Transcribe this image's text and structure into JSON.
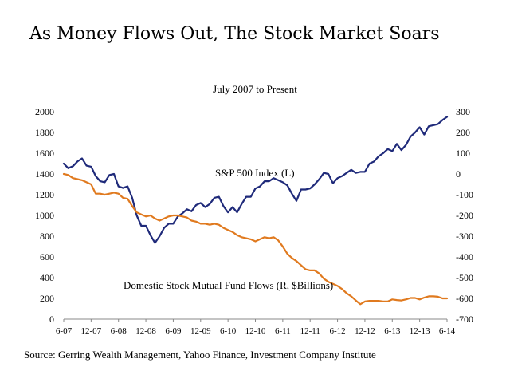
{
  "page": {
    "title": "As Money Flows Out, The Stock Market Soars",
    "subtitle": "July 2007 to Present",
    "source": "Source: Gerring Wealth Management, Yahoo Finance, Investment Company Institute"
  },
  "chart_data": {
    "type": "line",
    "title": "As Money Flows Out, The Stock Market Soars",
    "subtitle": "July 2007 to Present",
    "x_tick_labels": [
      "6-07",
      "12-07",
      "6-08",
      "12-08",
      "6-09",
      "12-09",
      "6-10",
      "12-10",
      "6-11",
      "12-11",
      "6-12",
      "12-12",
      "6-13",
      "12-13",
      "6-14"
    ],
    "y_left": {
      "ticks": [
        "0",
        "200",
        "400",
        "600",
        "800",
        "1000",
        "1200",
        "1400",
        "1600",
        "1800",
        "2000"
      ],
      "range": [
        0,
        2000
      ]
    },
    "y_right": {
      "ticks": [
        "-700",
        "-600",
        "-500",
        "-400",
        "-300",
        "-200",
        "-100",
        "0",
        "100",
        "200",
        "300"
      ],
      "range": [
        -700,
        300
      ]
    },
    "grid": false,
    "series": [
      {
        "name": "S&P 500 Index (L)",
        "axis": "left",
        "color": "#1f2a7a",
        "values": [
          1500,
          1455,
          1475,
          1520,
          1550,
          1480,
          1470,
          1380,
          1330,
          1320,
          1390,
          1400,
          1280,
          1265,
          1280,
          1170,
          1000,
          900,
          900,
          810,
          735,
          800,
          880,
          920,
          920,
          990,
          1020,
          1060,
          1040,
          1100,
          1120,
          1080,
          1110,
          1170,
          1180,
          1090,
          1030,
          1080,
          1030,
          1110,
          1180,
          1180,
          1260,
          1280,
          1330,
          1330,
          1360,
          1340,
          1320,
          1290,
          1210,
          1140,
          1250,
          1250,
          1260,
          1300,
          1350,
          1410,
          1400,
          1310,
          1360,
          1380,
          1410,
          1440,
          1410,
          1420,
          1420,
          1500,
          1520,
          1570,
          1600,
          1640,
          1620,
          1690,
          1630,
          1680,
          1760,
          1800,
          1850,
          1780,
          1860,
          1870,
          1880,
          1920,
          1950
        ]
      },
      {
        "name": "Domestic Stock Mutual Fund Flows (R, $Billions)",
        "axis": "right",
        "color": "#e07a1f",
        "values": [
          0,
          -5,
          -20,
          -25,
          -30,
          -40,
          -50,
          -95,
          -95,
          -100,
          -95,
          -90,
          -95,
          -115,
          -120,
          -155,
          -185,
          -195,
          -205,
          -200,
          -215,
          -225,
          -215,
          -205,
          -200,
          -200,
          -205,
          -210,
          -225,
          -230,
          -240,
          -240,
          -245,
          -240,
          -245,
          -260,
          -270,
          -280,
          -295,
          -305,
          -310,
          -315,
          -325,
          -315,
          -305,
          -310,
          -305,
          -320,
          -350,
          -385,
          -405,
          -420,
          -440,
          -460,
          -465,
          -465,
          -480,
          -505,
          -520,
          -530,
          -540,
          -555,
          -575,
          -590,
          -610,
          -628,
          -615,
          -612,
          -612,
          -612,
          -615,
          -615,
          -605,
          -608,
          -610,
          -605,
          -598,
          -598,
          -605,
          -596,
          -590,
          -590,
          -592,
          -600,
          -600
        ]
      }
    ],
    "annotations": [
      "S&P 500 Index (L)",
      "Domestic Stock Mutual Fund Flows (R, $Billions)"
    ]
  }
}
